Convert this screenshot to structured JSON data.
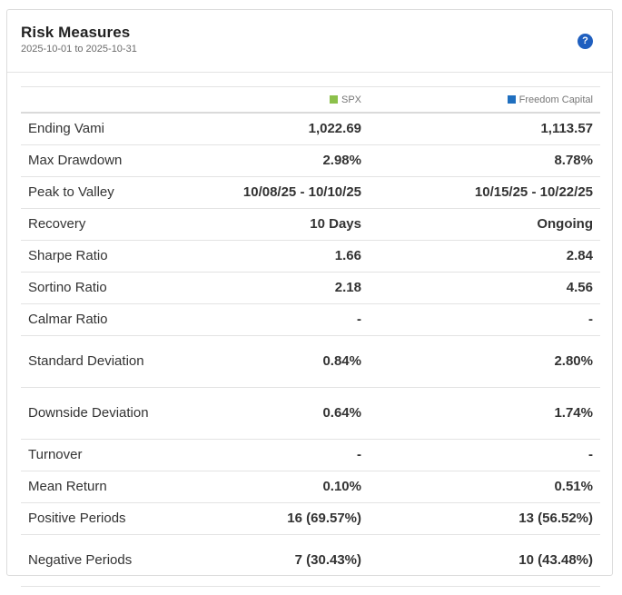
{
  "header": {
    "title": "Risk Measures",
    "date_range": "2025-10-01 to 2025-10-31",
    "help_glyph": "?"
  },
  "columns": [
    {
      "name": "SPX",
      "color": "#8cc04b"
    },
    {
      "name": "Freedom Capital",
      "color": "#1f6fbf"
    }
  ],
  "rows": [
    {
      "label": "Ending Vami",
      "values": [
        "1,022.69",
        "1,113.57"
      ]
    },
    {
      "label": "Max Drawdown",
      "values": [
        "2.98%",
        "8.78%"
      ]
    },
    {
      "label": "Peak to Valley",
      "values": [
        "10/08/25 - 10/10/25",
        "10/15/25 - 10/22/25"
      ]
    },
    {
      "label": "Recovery",
      "values": [
        "10 Days",
        "Ongoing"
      ]
    },
    {
      "label": "Sharpe Ratio",
      "values": [
        "1.66",
        "2.84"
      ]
    },
    {
      "label": "Sortino Ratio",
      "values": [
        "2.18",
        "4.56"
      ]
    },
    {
      "label": "Calmar Ratio",
      "values": [
        "-",
        "-"
      ]
    },
    {
      "label": "Standard Deviation",
      "values": [
        "0.84%",
        "2.80%"
      ]
    },
    {
      "label": "Downside Deviation",
      "values": [
        "0.64%",
        "1.74%"
      ]
    },
    {
      "label": "Turnover",
      "values": [
        "-",
        "-"
      ]
    },
    {
      "label": "Mean Return",
      "values": [
        "0.10%",
        "0.51%"
      ]
    },
    {
      "label": "Positive Periods",
      "values": [
        "16 (69.57%)",
        "13 (56.52%)"
      ]
    },
    {
      "label": "Negative Periods",
      "values": [
        "7 (30.43%)",
        "10 (43.48%)"
      ]
    }
  ]
}
